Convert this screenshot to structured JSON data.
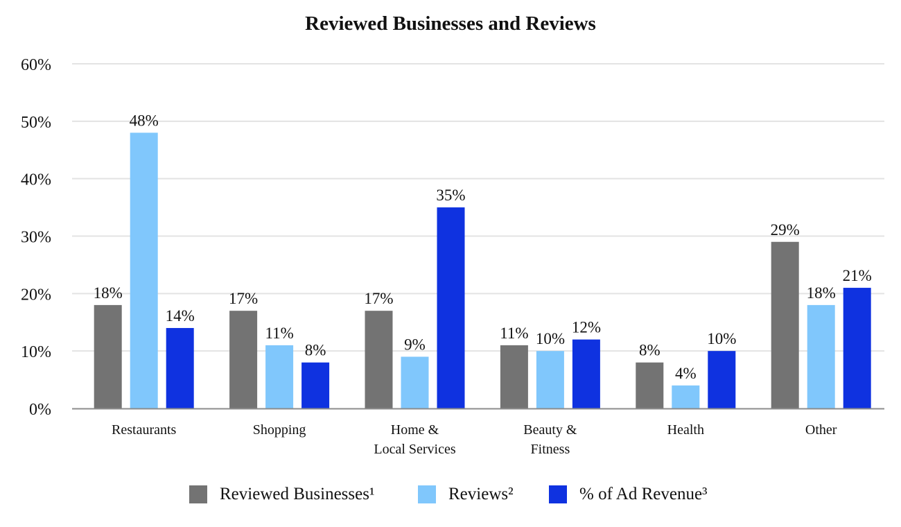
{
  "chart_data": {
    "type": "bar",
    "title": "Reviewed Businesses and Reviews",
    "categories": [
      "Restaurants",
      "Shopping",
      "Home &\nLocal Services",
      "Beauty &\nFitness",
      "Health",
      "Other"
    ],
    "series": [
      {
        "name": "Reviewed Businesses¹",
        "color": "#737373",
        "values": [
          18,
          17,
          17,
          11,
          8,
          29
        ]
      },
      {
        "name": "Reviews²",
        "color": "#80c7fc",
        "values": [
          48,
          11,
          9,
          10,
          4,
          18
        ]
      },
      {
        "name": "% of Ad Revenue³",
        "color": "#0f32e0",
        "values": [
          14,
          8,
          35,
          12,
          10,
          21
        ]
      }
    ],
    "value_suffix": "%",
    "yticks": [
      "0%",
      "10%",
      "20%",
      "30%",
      "40%",
      "50%",
      "60%"
    ],
    "ylim": [
      0,
      60
    ],
    "xlabel": "",
    "ylabel": "",
    "grid": true,
    "legend_position": "bottom-center"
  }
}
